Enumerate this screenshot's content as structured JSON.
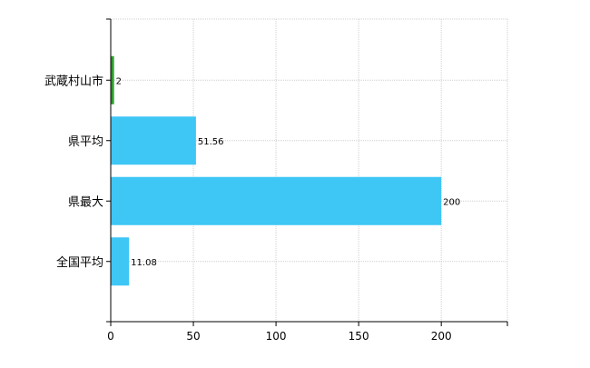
{
  "chart_data": {
    "type": "bar",
    "orientation": "horizontal",
    "categories": [
      "武蔵村山市",
      "県平均",
      "県最大",
      "全国平均"
    ],
    "values": [
      2,
      51.56,
      200,
      11.08
    ],
    "data_labels": [
      "2",
      "51.56",
      "200",
      "11.08"
    ],
    "bar_colors": [
      "#2e9e2e",
      "#3ec6f5",
      "#3ec6f5",
      "#3ec6f5"
    ],
    "xlim": [
      0,
      240
    ],
    "x_ticks": [
      0,
      50,
      100,
      150,
      200
    ],
    "grid": true,
    "title": "",
    "xlabel": "",
    "ylabel": ""
  }
}
